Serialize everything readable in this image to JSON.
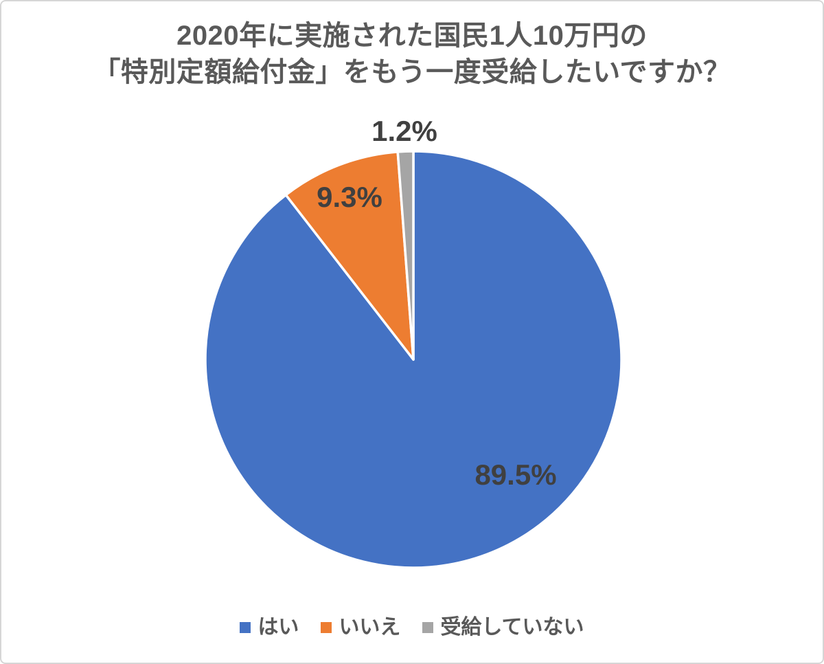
{
  "page": {
    "background": "#FFFFFF",
    "border_color": "#D6D6D6"
  },
  "chart_title": {
    "line1": "2020年に実施された国民1人10万円の",
    "line2": "「特別定額給付金」をもう一度受給したいですか？"
  },
  "chart_data": {
    "type": "pie",
    "title": "2020年に実施された国民1人10万円の「特別定額給付金」をもう一度受給したいですか？",
    "categories": [
      "はい",
      "いいえ",
      "受給していない"
    ],
    "values": [
      89.5,
      9.3,
      1.2
    ],
    "unit": "%",
    "start_angle_deg": 0,
    "direction": "clockwise",
    "legend_position": "bottom",
    "slices": [
      {
        "label": "はい",
        "value": 89.5,
        "display": "89.5%",
        "color": "#4472C4"
      },
      {
        "label": "いいえ",
        "value": 9.3,
        "display": "9.3%",
        "color": "#ED7D31"
      },
      {
        "label": "受給していない",
        "value": 1.2,
        "display": "1.2%",
        "color": "#A5A5A5"
      }
    ],
    "colors": {
      "title_text": "#595959",
      "label_text": "#404040",
      "legend_text": "#595959",
      "slice_border": "#FFFFFF"
    }
  }
}
